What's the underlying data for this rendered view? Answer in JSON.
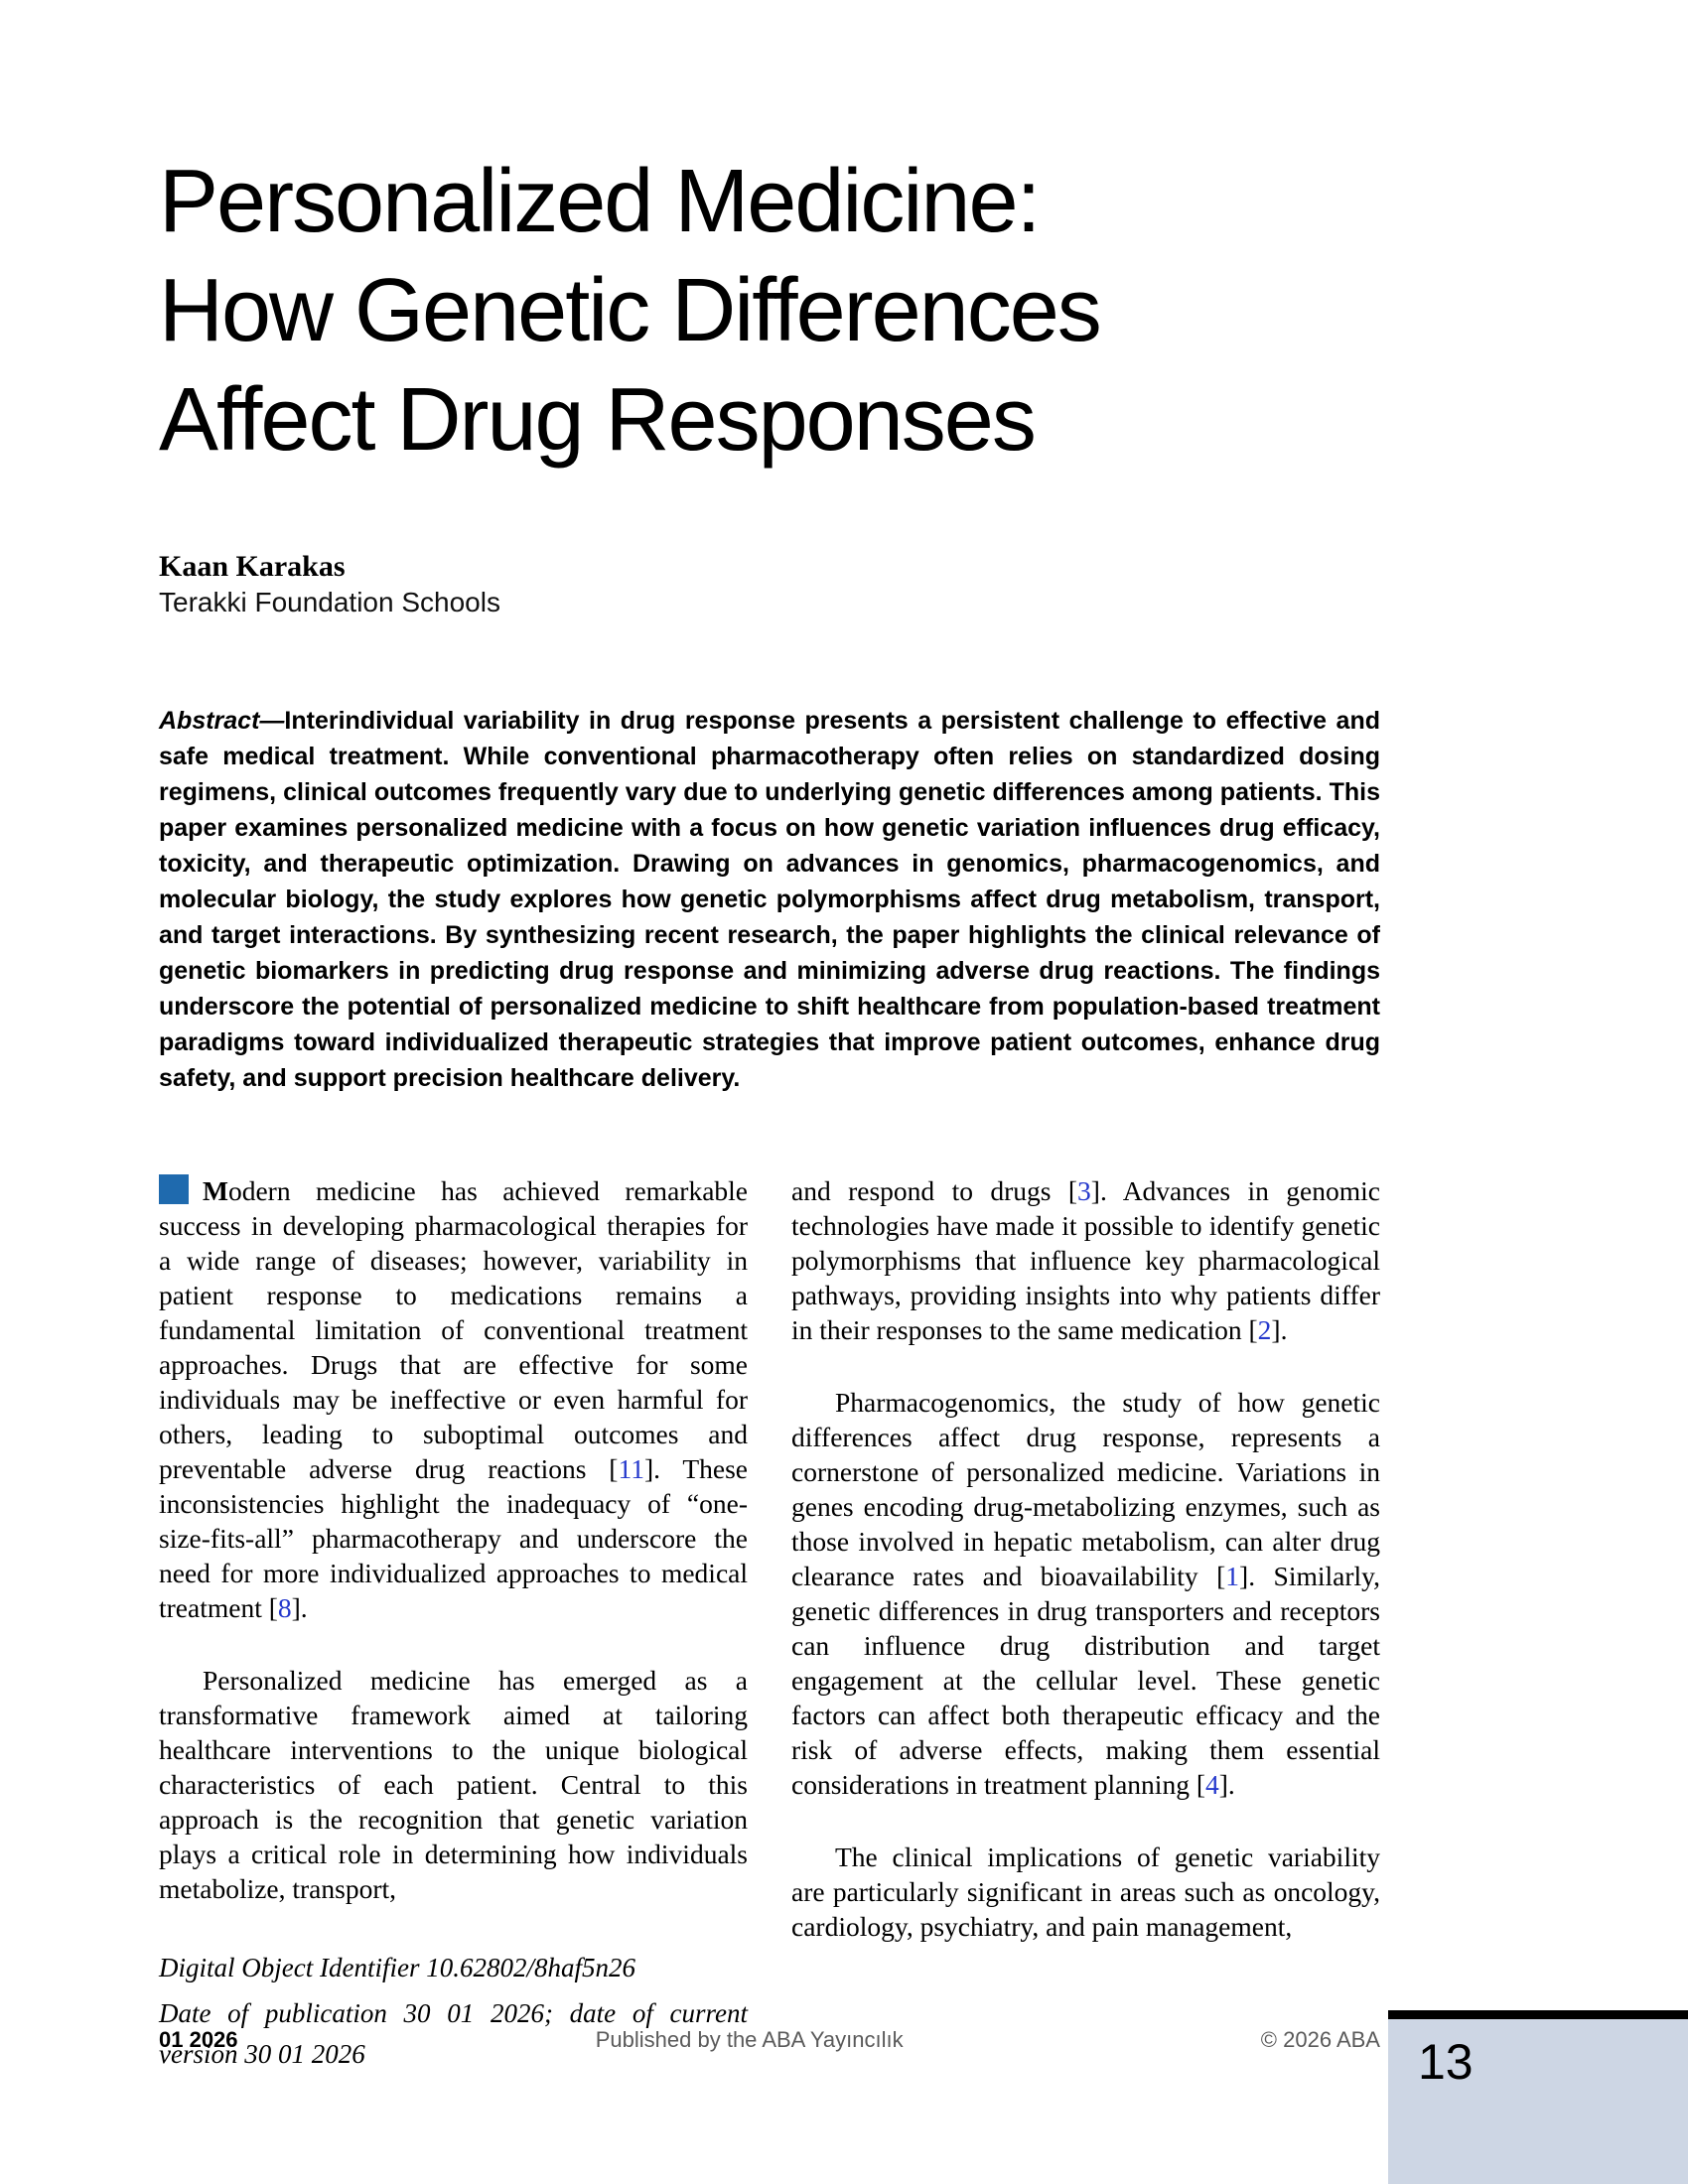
{
  "title": "Personalized Medicine:\nHow Genetic Differences\nAffect Drug Responses",
  "author": {
    "name": "Kaan Karakas",
    "affiliation": "Terakki Foundation Schools"
  },
  "abstract": {
    "label": "Abstract—",
    "text": "Interindividual variability in drug response presents a persistent challenge to effective and safe medical treatment. While conventional pharmacotherapy often relies on standardized dosing regimens, clinical outcomes frequently vary due to underlying genetic differences among patients. This paper examines personalized medicine with a focus on how genetic variation influences drug efficacy, toxicity, and therapeutic optimization. Drawing on advances in genomics, pharmacogenomics, and molecular biology, the study explores how genetic polymorphisms affect drug metabolism, transport, and target interactions. By synthesizing recent research, the paper highlights the clinical relevance of genetic biomarkers in predicting drug response and minimizing adverse drug reactions. The findings underscore the potential of personalized medicine to shift healthcare from population-based treatment paradigms toward individualized therapeutic strategies that improve patient outcomes, enhance drug safety, and support precision healthcare delivery."
  },
  "body": {
    "left": {
      "p1": [
        {
          "t": "M",
          "c": "b"
        },
        {
          "t": "odern medicine has achieved remarkable success in developing pharmacological therapies for a wide range of diseases; however, variability in patient response to medications remains a fundamental limitation of conventional treatment approaches. Drugs that are effective for some individuals may be ineffective or even harmful for others, leading to suboptimal outcomes and preventable adverse drug reactions ["
        },
        {
          "t": "11",
          "c": "cite"
        },
        {
          "t": "]. These inconsistencies highlight the inadequacy of “one-size-fits-all” pharmacotherapy and underscore the need for more individualized approaches to medical treatment ["
        },
        {
          "t": "8",
          "c": "cite"
        },
        {
          "t": "]."
        }
      ],
      "p2": "Personalized medicine has emerged as a transformative framework aimed at tailoring healthcare interventions to the unique biological characteristics of each patient. Central to this approach is the recognition that genetic variation plays a critical role in determining how individuals metabolize, transport,"
    },
    "right": {
      "p1": [
        {
          "t": "and respond to drugs ["
        },
        {
          "t": "3",
          "c": "cite"
        },
        {
          "t": "]. Advances in genomic technologies have made it possible to identify genetic polymorphisms that influence key pharmacological pathways, providing insights into why patients differ in their responses to the same medication ["
        },
        {
          "t": "2",
          "c": "cite"
        },
        {
          "t": "]."
        }
      ],
      "p2": [
        {
          "t": "Pharmacogenomics, the study of how genetic differences affect drug response, represents a cornerstone of personalized medicine. Variations in genes encoding drug-metabolizing enzymes, such as those involved in hepatic metabolism, can alter drug clearance rates and bioavailability ["
        },
        {
          "t": "1",
          "c": "cite"
        },
        {
          "t": "]. Similarly, genetic differences in drug transporters and receptors can influence drug distribution and target engagement at the cellular level. These genetic factors can affect both therapeutic efficacy and the risk of adverse effects, making them essential considerations in treatment planning ["
        },
        {
          "t": "4",
          "c": "cite"
        },
        {
          "t": "]."
        }
      ],
      "p3": "The clinical implications of genetic variability are particularly significant in areas such as oncology, cardiology, psychiatry, and pain management,"
    }
  },
  "footnote": {
    "doi": "Digital Object Identifier 10.62802/8haf5n26",
    "dates": "Date of publication 30 01 2026; date of current version 30 01 2026"
  },
  "footer": {
    "issue": "01 2026",
    "publisher": "Published by the ABA Yayıncılık",
    "copyright": "© 2026 ABA",
    "page_number": "13"
  },
  "colors": {
    "paragraph_marker": "#1f6aae",
    "citation_link": "#2438cc",
    "page_number_box": "#cdd6e4",
    "footer_text": "#5a5a5a"
  }
}
